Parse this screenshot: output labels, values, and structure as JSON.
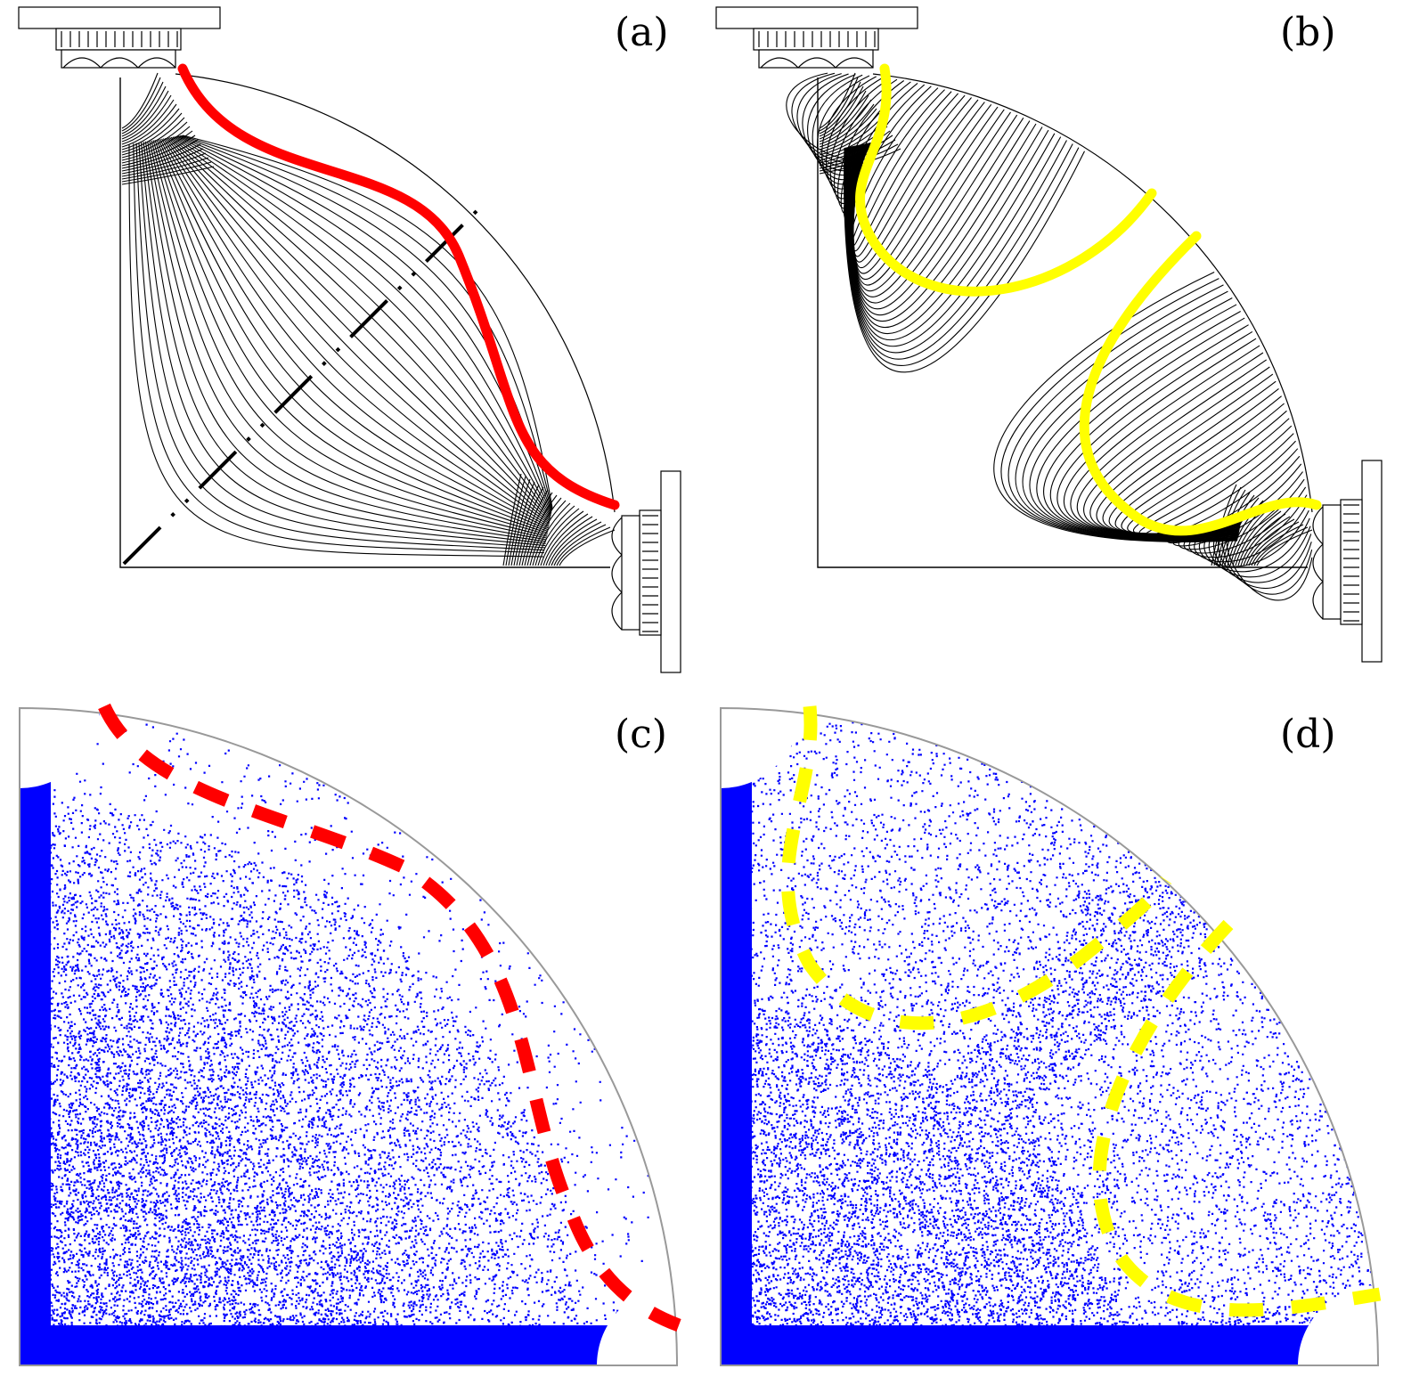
{
  "panels": {
    "a": {
      "label": "(a)",
      "highlight_color": "#ff0000"
    },
    "b": {
      "label": "(b)",
      "highlight_color": "#ffff00"
    },
    "c": {
      "label": "(c)",
      "highlight_color": "#ff0000",
      "scatter_color": "#0000ff"
    },
    "d": {
      "label": "(d)",
      "highlight_color": "#ffff00",
      "scatter_color": "#0000ff"
    }
  },
  "colors": {
    "line": "#000000",
    "boundary": "#999999"
  }
}
